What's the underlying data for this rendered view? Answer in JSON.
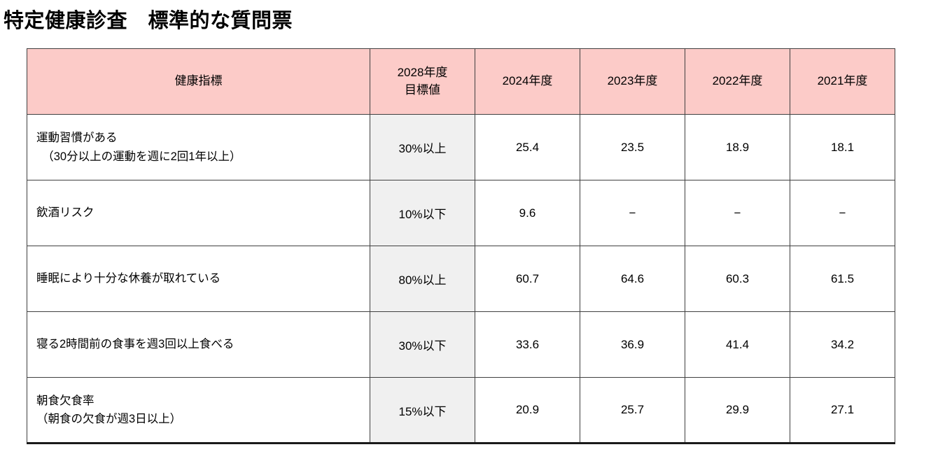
{
  "page": {
    "title": "特定健康診査　標準的な質問票"
  },
  "colors": {
    "header_background": "#fccbc8",
    "target_column_background": "#f0f0f0",
    "grid_border": "#404040",
    "table_bottom_border": "#1a1a1a"
  },
  "table": {
    "headers": {
      "indicator": "健康指標",
      "target": "2028年度\n目標値",
      "y2024": "2024年度",
      "y2023": "2023年度",
      "y2022": "2022年度",
      "y2021": "2021年度"
    },
    "rows": [
      {
        "label": "運動習慣がある\n　（30分以上の運動を週に2回1年以上）",
        "target": "30%以上",
        "values": [
          "25.4",
          "23.5",
          "18.9",
          "18.1"
        ]
      },
      {
        "label": "飲酒リスク",
        "target": "10%以下",
        "values": [
          "9.6",
          "−",
          "−",
          "−"
        ]
      },
      {
        "label": "睡眠により十分な休養が取れている",
        "target": "80%以上",
        "values": [
          "60.7",
          "64.6",
          "60.3",
          "61.5"
        ]
      },
      {
        "label": "寝る2時間前の食事を週3回以上食べる",
        "target": "30%以下",
        "values": [
          "33.6",
          "36.9",
          "41.4",
          "34.2"
        ]
      },
      {
        "label": "朝食欠食率\n（朝食の欠食が週3日以上）",
        "target": "15%以下",
        "values": [
          "20.9",
          "25.7",
          "29.9",
          "27.1"
        ]
      }
    ]
  }
}
